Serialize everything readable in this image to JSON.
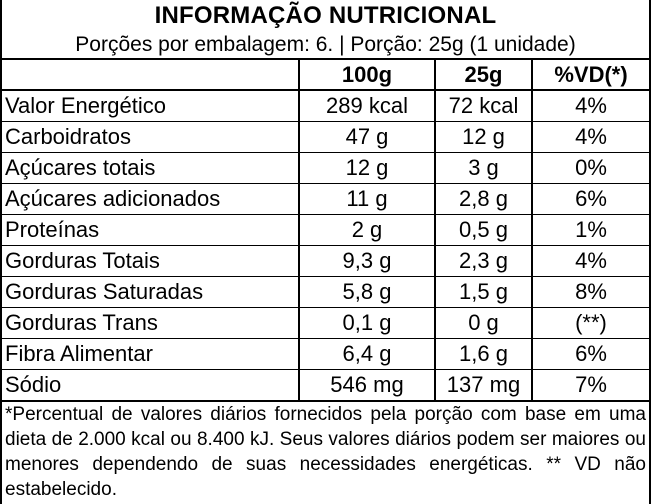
{
  "title": "INFORMAÇÃO NUTRICIONAL",
  "servings_line": "Porções por embalagem: 6. | Porção: 25g (1 unidade)",
  "columns": {
    "nutrient": "",
    "per_100g": "100g",
    "per_25g": "25g",
    "vd": "%VD(*)"
  },
  "rows": [
    {
      "nutrient": "Valor Energético",
      "per_100g": "289 kcal",
      "per_25g": "72 kcal",
      "vd": "4%"
    },
    {
      "nutrient": "Carboidratos",
      "per_100g": "47 g",
      "per_25g": "12 g",
      "vd": "4%"
    },
    {
      "nutrient": "Açúcares totais",
      "per_100g": "12 g",
      "per_25g": "3 g",
      "vd": "0%"
    },
    {
      "nutrient": "Açúcares adicionados",
      "per_100g": "11 g",
      "per_25g": "2,8 g",
      "vd": "6%"
    },
    {
      "nutrient": "Proteínas",
      "per_100g": "2 g",
      "per_25g": "0,5 g",
      "vd": "1%"
    },
    {
      "nutrient": "Gorduras Totais",
      "per_100g": "9,3 g",
      "per_25g": "2,3 g",
      "vd": "4%"
    },
    {
      "nutrient": "Gorduras Saturadas",
      "per_100g": "5,8 g",
      "per_25g": "1,5 g",
      "vd": "8%"
    },
    {
      "nutrient": "Gorduras Trans",
      "per_100g": "0,1 g",
      "per_25g": "0 g",
      "vd": "(**)"
    },
    {
      "nutrient": "Fibra Alimentar",
      "per_100g": "6,4 g",
      "per_25g": "1,6 g",
      "vd": "6%"
    },
    {
      "nutrient": "Sódio",
      "per_100g": "546 mg",
      "per_25g": "137 mg",
      "vd": "7%"
    }
  ],
  "footnote": "*Percentual de valores diários fornecidos pela porção com base em uma dieta de 2.000 kcal ou 8.400 kJ. Seus valores diários podem ser maiores ou menores dependendo de suas necessidades energéticas. ** VD não estabelecido."
}
